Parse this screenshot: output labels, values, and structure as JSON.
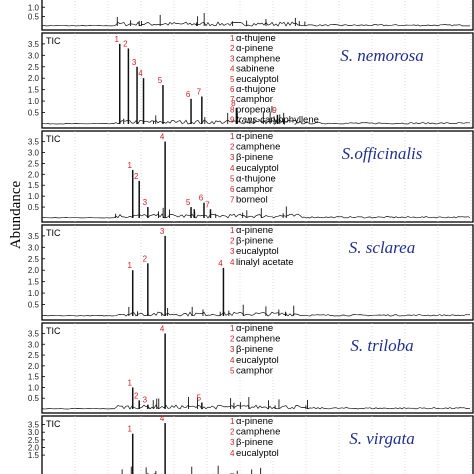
{
  "figure": {
    "ylabel": "Abundance",
    "colors": {
      "trace": "#111111",
      "grid": "#c8c8c8",
      "species": "#1f2f8f",
      "peak_number": "#d42020"
    }
  },
  "chart_data": [
    {
      "type": "line",
      "panel_title": "",
      "species": "",
      "ylim": [
        0,
        1.6
      ],
      "yticks": [
        "1.0",
        "0.5"
      ],
      "compounds": [],
      "peaks": []
    },
    {
      "type": "line",
      "panel_title": "TIC",
      "species": "S. nemorosa",
      "ylim": [
        0,
        3.8
      ],
      "yticks": [
        "3.5",
        "3.0",
        "2.5",
        "2.0",
        "1.5",
        "1.0",
        "0.5"
      ],
      "compounds": [
        {
          "num": "1",
          "name": "α-thujene"
        },
        {
          "num": "2",
          "name": "α-pinene"
        },
        {
          "num": "3",
          "name": "camphene"
        },
        {
          "num": "4",
          "name": "sabinene"
        },
        {
          "num": "5",
          "name": "eucalyptol"
        },
        {
          "num": "6",
          "name": "α-thujone"
        },
        {
          "num": "7",
          "name": "camphor"
        },
        {
          "num": "8",
          "name": "propenal"
        },
        {
          "num": "9",
          "name": "trans-caryophyllene",
          "italic_prefix": "trans"
        }
      ],
      "peaks": [
        {
          "label": "1",
          "x": 0.18,
          "y": 3.5
        },
        {
          "label": "2",
          "x": 0.2,
          "y": 3.3
        },
        {
          "label": "3",
          "x": 0.22,
          "y": 2.5
        },
        {
          "label": "4",
          "x": 0.235,
          "y": 2.0
        },
        {
          "label": "5",
          "x": 0.28,
          "y": 1.7
        },
        {
          "label": "6",
          "x": 0.345,
          "y": 1.1
        },
        {
          "label": "7",
          "x": 0.37,
          "y": 1.2
        },
        {
          "label": "8",
          "x": 0.45,
          "y": 0.7
        },
        {
          "label": "9",
          "x": 0.545,
          "y": 0.4
        }
      ]
    },
    {
      "type": "line",
      "panel_title": "TIC",
      "species": "S.officinalis",
      "ylim": [
        0,
        3.8
      ],
      "yticks": [
        "3.5",
        "3.0",
        "2.5",
        "2.0",
        "1.5",
        "1.0",
        "0.5"
      ],
      "compounds": [
        {
          "num": "1",
          "name": "α-pinene"
        },
        {
          "num": "2",
          "name": "camphene"
        },
        {
          "num": "3",
          "name": "β-pinene"
        },
        {
          "num": "4",
          "name": "eucalyptol"
        },
        {
          "num": "5",
          "name": "α-thujone"
        },
        {
          "num": "6",
          "name": "camphor"
        },
        {
          "num": "7",
          "name": "borneol"
        }
      ],
      "peaks": [
        {
          "label": "1",
          "x": 0.21,
          "y": 2.2
        },
        {
          "label": "2",
          "x": 0.225,
          "y": 1.7
        },
        {
          "label": "3",
          "x": 0.245,
          "y": 0.5
        },
        {
          "label": "4",
          "x": 0.285,
          "y": 3.5
        },
        {
          "label": "5",
          "x": 0.345,
          "y": 0.5
        },
        {
          "label": "6",
          "x": 0.375,
          "y": 0.7
        },
        {
          "label": "7",
          "x": 0.39,
          "y": 0.4
        }
      ]
    },
    {
      "type": "line",
      "panel_title": "TIC",
      "species": "S. sclarea",
      "ylim": [
        0,
        3.8
      ],
      "yticks": [
        "3.5",
        "3.0",
        "2.5",
        "2.0",
        "1.5",
        "1.0",
        "0.5"
      ],
      "compounds": [
        {
          "num": "1",
          "name": "α-pinene"
        },
        {
          "num": "2",
          "name": "β-pinene"
        },
        {
          "num": "3",
          "name": "eucalyptol"
        },
        {
          "num": "4",
          "name": "linalyl acetate"
        }
      ],
      "peaks": [
        {
          "label": "1",
          "x": 0.21,
          "y": 2.0
        },
        {
          "label": "2",
          "x": 0.245,
          "y": 2.3
        },
        {
          "label": "3",
          "x": 0.285,
          "y": 3.5
        },
        {
          "label": "4",
          "x": 0.42,
          "y": 2.1
        }
      ]
    },
    {
      "type": "line",
      "panel_title": "TIC",
      "species": "S. triloba",
      "ylim": [
        0,
        3.8
      ],
      "yticks": [
        "3.5",
        "3.0",
        "2.5",
        "2.0",
        "1.5",
        "1.0",
        "0.5"
      ],
      "compounds": [
        {
          "num": "1",
          "name": "α-pinene"
        },
        {
          "num": "2",
          "name": "camphene"
        },
        {
          "num": "3",
          "name": "β-pinene"
        },
        {
          "num": "4",
          "name": "eucalyptol"
        },
        {
          "num": "5",
          "name": "camphor"
        }
      ],
      "peaks": [
        {
          "label": "1",
          "x": 0.21,
          "y": 1.0
        },
        {
          "label": "2",
          "x": 0.225,
          "y": 0.4
        },
        {
          "label": "3",
          "x": 0.245,
          "y": 0.2
        },
        {
          "label": "4",
          "x": 0.285,
          "y": 3.5
        },
        {
          "label": "5",
          "x": 0.37,
          "y": 0.3
        }
      ]
    },
    {
      "type": "line",
      "panel_title": "TIC",
      "species": "S. virgata",
      "ylim": [
        0,
        3.8
      ],
      "yticks": [
        "3.5",
        "3.0",
        "2.5",
        "2.0",
        "1.5"
      ],
      "compounds": [
        {
          "num": "1",
          "name": "α-pinene"
        },
        {
          "num": "2",
          "name": "camphene"
        },
        {
          "num": "3",
          "name": "β-pinene"
        },
        {
          "num": "4",
          "name": "eucalyptol"
        }
      ],
      "peaks": [
        {
          "label": "1",
          "x": 0.21,
          "y": 2.9
        },
        {
          "label": "4",
          "x": 0.285,
          "y": 3.6
        }
      ]
    }
  ]
}
